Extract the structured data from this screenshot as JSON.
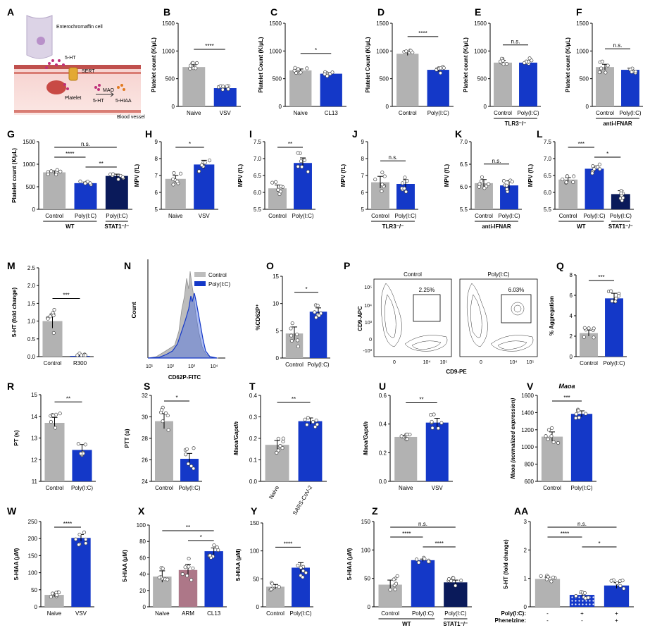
{
  "figure": {
    "schematic": {
      "panel_label": "A",
      "labels": {
        "enterochromaffin": "Enterochromaffin cell",
        "ht": "5-HT",
        "sert": "SERT",
        "platelet": "Platelet",
        "mao": "MAO",
        "ht2": "5-HT",
        "hiaa": "5-HIAA",
        "vessel": "Blood vessel"
      }
    },
    "flow": {
      "panel_label": "N",
      "xlabel": "CD62P-FITC",
      "ylabel": "Count",
      "ticks": [
        "10¹",
        "10²",
        "10³",
        "10⁴"
      ],
      "legend": [
        "Control",
        "Poly(I:C)"
      ]
    },
    "contour": {
      "panel_label": "P",
      "titles": [
        "Control",
        "Poly(I:C)"
      ],
      "gates": [
        "2.25%",
        "6.03%"
      ],
      "xlabel": "CD9-PE",
      "ylabel": "CD9-APC",
      "yticks": [
        "10⁵",
        "10⁴",
        "10³",
        "0",
        "-10³"
      ],
      "xticks": [
        "0",
        "10⁴",
        "10⁵"
      ]
    }
  },
  "chart_data": [
    {
      "id": "B",
      "type": "bar",
      "ylabel": "Platelet count (K/μL)",
      "ylim": [
        0,
        1500
      ],
      "yticks": [
        "0",
        "500",
        "1000",
        "1500"
      ],
      "categories": [
        "Naive",
        "VSV"
      ],
      "values": [
        710,
        330
      ],
      "errors": [
        40,
        25
      ],
      "colors": [
        "#b2b2b2",
        "#1438c8"
      ],
      "sig": [
        {
          "a": 0,
          "b": 1,
          "text": "****"
        }
      ],
      "groups": []
    },
    {
      "id": "C",
      "type": "bar",
      "ylabel": "Platelet Count (K/μL)",
      "ylim": [
        0,
        1500
      ],
      "yticks": [
        "0",
        "500",
        "1000",
        "1500"
      ],
      "categories": [
        "Naive",
        "CL13"
      ],
      "values": [
        650,
        590
      ],
      "errors": [
        25,
        20
      ],
      "colors": [
        "#b2b2b2",
        "#1438c8"
      ],
      "sig": [
        {
          "a": 0,
          "b": 1,
          "text": "*"
        }
      ],
      "groups": []
    },
    {
      "id": "D",
      "type": "bar",
      "ylabel": "Platelet Count (K/μL)",
      "ylim": [
        0,
        1500
      ],
      "yticks": [
        "0",
        "500",
        "1000",
        "1500"
      ],
      "categories": [
        "Control",
        "Poly(I:C)"
      ],
      "values": [
        950,
        660
      ],
      "errors": [
        30,
        30
      ],
      "colors": [
        "#b2b2b2",
        "#1438c8"
      ],
      "sig": [
        {
          "a": 0,
          "b": 1,
          "text": "****"
        }
      ],
      "groups": []
    },
    {
      "id": "E",
      "type": "bar",
      "ylabel": "Platelet count (K/μL)",
      "ylim": [
        0,
        1500
      ],
      "yticks": [
        "0",
        "500",
        "1000",
        "1500"
      ],
      "categories": [
        "Control",
        "Poly(I:C)"
      ],
      "values": [
        790,
        790
      ],
      "errors": [
        40,
        40
      ],
      "colors": [
        "#b2b2b2",
        "#1438c8"
      ],
      "sig": [
        {
          "a": 0,
          "b": 1,
          "text": "n.s."
        }
      ],
      "groups": [
        {
          "from": 0,
          "to": 1,
          "label": "TLR3⁻/⁻"
        }
      ]
    },
    {
      "id": "F",
      "type": "bar",
      "ylabel": "Platelet count (K/μL)",
      "ylim": [
        0,
        1500
      ],
      "yticks": [
        "0",
        "500",
        "1000",
        "1500"
      ],
      "categories": [
        "Control",
        "Poly(I:C)"
      ],
      "values": [
        710,
        660
      ],
      "errors": [
        50,
        30
      ],
      "colors": [
        "#b2b2b2",
        "#1438c8"
      ],
      "sig": [
        {
          "a": 0,
          "b": 1,
          "text": "n.s."
        }
      ],
      "groups": [
        {
          "from": 0,
          "to": 1,
          "label": "anti-IFNAR"
        }
      ]
    },
    {
      "id": "G",
      "type": "bar",
      "ylabel": "Platelet count (K/μL)",
      "ylim": [
        0,
        1500
      ],
      "yticks": [
        "0",
        "500",
        "1000",
        "1500"
      ],
      "categories": [
        "Control",
        "Poly(I:C)",
        "Poly(I:C)"
      ],
      "values": [
        820,
        580,
        740
      ],
      "errors": [
        30,
        25,
        40
      ],
      "colors": [
        "#b2b2b2",
        "#1438c8",
        "#0a1a5a"
      ],
      "sig": [
        {
          "a": 0,
          "b": 2,
          "text": "n.s."
        },
        {
          "a": 0,
          "b": 1,
          "text": "****"
        },
        {
          "a": 1,
          "b": 2,
          "text": "**"
        }
      ],
      "groups": [
        {
          "from": 0,
          "to": 1,
          "label": "WT"
        },
        {
          "from": 2,
          "to": 2,
          "label": "STAT1⁻/⁻"
        }
      ]
    },
    {
      "id": "H",
      "type": "bar",
      "ylabel": "MPV (fL)",
      "ylim": [
        5,
        9
      ],
      "yticks": [
        "5",
        "6",
        "7",
        "8",
        "9"
      ],
      "categories": [
        "Naive",
        "VSV"
      ],
      "values": [
        6.8,
        7.65
      ],
      "errors": [
        0.2,
        0.25
      ],
      "colors": [
        "#b2b2b2",
        "#1438c8"
      ],
      "sig": [
        {
          "a": 0,
          "b": 1,
          "text": "*"
        }
      ],
      "groups": []
    },
    {
      "id": "I",
      "type": "bar",
      "ylabel": "MPV (fL)",
      "ylim": [
        5.5,
        7.5
      ],
      "yticks": [
        "5.5",
        "6.0",
        "6.5",
        "7.0",
        "7.5"
      ],
      "categories": [
        "Control",
        "Poly(I:C)"
      ],
      "values": [
        6.12,
        6.87
      ],
      "errors": [
        0.1,
        0.15
      ],
      "colors": [
        "#b2b2b2",
        "#1438c8"
      ],
      "sig": [
        {
          "a": 0,
          "b": 1,
          "text": "**"
        }
      ],
      "groups": []
    },
    {
      "id": "J",
      "type": "bar",
      "ylabel": "MPV (fL)",
      "ylim": [
        5,
        9
      ],
      "yticks": [
        "5",
        "6",
        "7",
        "8",
        "9"
      ],
      "categories": [
        "Control",
        "Poly(I:C)"
      ],
      "values": [
        6.6,
        6.5
      ],
      "errors": [
        0.35,
        0.25
      ],
      "colors": [
        "#b2b2b2",
        "#1438c8"
      ],
      "sig": [
        {
          "a": 0,
          "b": 1,
          "text": "n.s."
        }
      ],
      "groups": [
        {
          "from": 0,
          "to": 1,
          "label": "TLR3⁻/⁻"
        }
      ]
    },
    {
      "id": "K",
      "type": "bar",
      "ylabel": "MPV (fL)",
      "ylim": [
        5.5,
        7.0
      ],
      "yticks": [
        "5.5",
        "6.0",
        "6.5",
        "7.0"
      ],
      "categories": [
        "Control",
        "Poly(I:C)"
      ],
      "values": [
        6.08,
        6.03
      ],
      "errors": [
        0.08,
        0.1
      ],
      "colors": [
        "#b2b2b2",
        "#1438c8"
      ],
      "sig": [
        {
          "a": 0,
          "b": 1,
          "text": "n.s."
        }
      ],
      "groups": [
        {
          "from": 0,
          "to": 1,
          "label": "anti-IFNAR"
        }
      ]
    },
    {
      "id": "L",
      "type": "bar",
      "ylabel": "MPV (fL)",
      "ylim": [
        5.5,
        7.5
      ],
      "yticks": [
        "5.5",
        "6.0",
        "6.5",
        "7.0",
        "7.5"
      ],
      "categories": [
        "Control",
        "Poly(I:C)",
        "Poly(I:C)"
      ],
      "values": [
        6.38,
        6.7,
        5.95
      ],
      "errors": [
        0.06,
        0.08,
        0.1
      ],
      "colors": [
        "#b2b2b2",
        "#1438c8",
        "#0a1a5a"
      ],
      "sig": [
        {
          "a": 0,
          "b": 1,
          "text": "***"
        },
        {
          "a": 1,
          "b": 2,
          "text": "*"
        }
      ],
      "groups": [
        {
          "from": 0,
          "to": 1,
          "label": "WT"
        },
        {
          "from": 2,
          "to": 2,
          "label": "STAT1⁻/⁻"
        }
      ]
    },
    {
      "id": "M",
      "type": "bar",
      "ylabel": "5-HT (fold change)",
      "ylim": [
        0,
        2.5
      ],
      "yticks": [
        "0.0",
        "0.5",
        "1.0",
        "1.5",
        "2.0",
        "2.5"
      ],
      "categories": [
        "Control",
        "R300"
      ],
      "values": [
        1.0,
        0.02
      ],
      "errors": [
        0.2,
        0.01
      ],
      "colors": [
        "#b2b2b2",
        "#1438c8"
      ],
      "sig": [
        {
          "a": 0,
          "b": 1,
          "text": "***"
        }
      ],
      "groups": []
    },
    {
      "id": "O",
      "type": "bar",
      "ylabel": "%CD62P⁺",
      "ylim": [
        0,
        15
      ],
      "yticks": [
        "0",
        "5",
        "10",
        "15"
      ],
      "categories": [
        "Control",
        "Poly(I:C)"
      ],
      "values": [
        4.5,
        8.5
      ],
      "errors": [
        1.2,
        0.7
      ],
      "colors": [
        "#b2b2b2",
        "#1438c8"
      ],
      "sig": [
        {
          "a": 0,
          "b": 1,
          "text": "*"
        }
      ],
      "groups": []
    },
    {
      "id": "Q",
      "type": "bar",
      "ylabel": "% Aggregation",
      "ylim": [
        0,
        8
      ],
      "yticks": [
        "0",
        "2",
        "4",
        "6",
        "8"
      ],
      "categories": [
        "Control",
        "Poly(I:C)"
      ],
      "values": [
        2.3,
        5.7
      ],
      "errors": [
        0.3,
        0.5
      ],
      "colors": [
        "#b2b2b2",
        "#1438c8"
      ],
      "sig": [
        {
          "a": 0,
          "b": 1,
          "text": "***"
        }
      ],
      "groups": []
    },
    {
      "id": "R",
      "type": "bar",
      "ylabel": "PT (s)",
      "ylim": [
        11,
        15
      ],
      "yticks": [
        "11",
        "12",
        "13",
        "14",
        "15"
      ],
      "categories": [
        "Control",
        "Poly(I:C)"
      ],
      "values": [
        13.7,
        12.45
      ],
      "errors": [
        0.25,
        0.25
      ],
      "colors": [
        "#b2b2b2",
        "#1438c8"
      ],
      "sig": [
        {
          "a": 0,
          "b": 1,
          "text": "**"
        }
      ],
      "groups": []
    },
    {
      "id": "S",
      "type": "bar",
      "ylabel": "PTT (s)",
      "ylim": [
        24,
        32
      ],
      "yticks": [
        "24",
        "26",
        "28",
        "30",
        "32"
      ],
      "categories": [
        "Control",
        "Poly(I:C)"
      ],
      "values": [
        29.6,
        26.1
      ],
      "errors": [
        0.7,
        0.5
      ],
      "colors": [
        "#b2b2b2",
        "#1438c8"
      ],
      "sig": [
        {
          "a": 0,
          "b": 1,
          "text": "*"
        }
      ],
      "groups": []
    },
    {
      "id": "T",
      "type": "bar",
      "ylabel": "Maoa/Gapdh",
      "ylim": [
        0,
        0.4
      ],
      "yticks": [
        "0.0",
        "0.1",
        "0.2",
        "0.3",
        "0.4"
      ],
      "categories": [
        "Naive",
        "SARS-CoV-2"
      ],
      "values": [
        0.17,
        0.28
      ],
      "errors": [
        0.02,
        0.015
      ],
      "colors": [
        "#b2b2b2",
        "#1438c8"
      ],
      "sig": [
        {
          "a": 0,
          "b": 1,
          "text": "**"
        }
      ],
      "groups": [],
      "rotate": true
    },
    {
      "id": "U",
      "type": "bar",
      "ylabel": "Maoa/Gapdh",
      "ylim": [
        0,
        0.6
      ],
      "yticks": [
        "0.0",
        "0.2",
        "0.4",
        "0.6"
      ],
      "categories": [
        "Naive",
        "VSV"
      ],
      "values": [
        0.31,
        0.41
      ],
      "errors": [
        0.012,
        0.03
      ],
      "colors": [
        "#b2b2b2",
        "#1438c8"
      ],
      "sig": [
        {
          "a": 0,
          "b": 1,
          "text": "**"
        }
      ],
      "groups": []
    },
    {
      "id": "V",
      "type": "bar",
      "title": "Maoa",
      "ylabel": "Maoa (normalized expression)",
      "ylim": [
        600,
        1600
      ],
      "yticks": [
        "600",
        "800",
        "1000",
        "1200",
        "1400",
        "1600"
      ],
      "categories": [
        "Control",
        "Poly(I:C)"
      ],
      "values": [
        1120,
        1385
      ],
      "errors": [
        55,
        35
      ],
      "colors": [
        "#b2b2b2",
        "#1438c8"
      ],
      "sig": [
        {
          "a": 0,
          "b": 1,
          "text": "***"
        }
      ],
      "groups": []
    },
    {
      "id": "W",
      "type": "bar",
      "ylabel": "5-HIAA (μM)",
      "ylim": [
        0,
        250
      ],
      "yticks": [
        "0",
        "50",
        "100",
        "150",
        "200",
        "250"
      ],
      "categories": [
        "Naive",
        "VSV"
      ],
      "values": [
        35,
        202
      ],
      "errors": [
        5,
        10
      ],
      "colors": [
        "#b2b2b2",
        "#1438c8"
      ],
      "sig": [
        {
          "a": 0,
          "b": 1,
          "text": "****"
        }
      ],
      "groups": []
    },
    {
      "id": "X",
      "type": "bar",
      "ylabel": "5-HIAA (μM)",
      "ylim": [
        0,
        100
      ],
      "yticks": [
        "0",
        "20",
        "40",
        "60",
        "80",
        "100"
      ],
      "categories": [
        "Naive",
        "ARM",
        "CL13"
      ],
      "values": [
        37,
        45,
        68
      ],
      "errors": [
        7,
        7,
        4
      ],
      "colors": [
        "#b2b2b2",
        "#ad7788",
        "#1438c8"
      ],
      "sig": [
        {
          "a": 0,
          "b": 2,
          "text": "**"
        },
        {
          "a": 1,
          "b": 2,
          "text": "*"
        }
      ],
      "groups": []
    },
    {
      "id": "Y",
      "type": "bar",
      "ylabel": "5-HIAA (μM)",
      "ylim": [
        0,
        150
      ],
      "yticks": [
        "0",
        "50",
        "100",
        "150"
      ],
      "categories": [
        "Control",
        "Poly(I:C)"
      ],
      "values": [
        36,
        70
      ],
      "errors": [
        4,
        9
      ],
      "colors": [
        "#b2b2b2",
        "#1438c8"
      ],
      "sig": [
        {
          "a": 0,
          "b": 1,
          "text": "****"
        }
      ],
      "groups": []
    },
    {
      "id": "Z",
      "type": "bar",
      "ylabel": "5-HIAA (μM)",
      "ylim": [
        0,
        150
      ],
      "yticks": [
        "0",
        "50",
        "100",
        "150"
      ],
      "categories": [
        "Control",
        "Poly(I:C)",
        "Poly(I:C)"
      ],
      "values": [
        39,
        82,
        43
      ],
      "errors": [
        8,
        2,
        4
      ],
      "colors": [
        "#b2b2b2",
        "#1438c8",
        "#0a1a5a"
      ],
      "sig": [
        {
          "a": 0,
          "b": 2,
          "text": "n.s."
        },
        {
          "a": 0,
          "b": 1,
          "text": "****"
        },
        {
          "a": 1,
          "b": 2,
          "text": "****"
        }
      ],
      "groups": [
        {
          "from": 0,
          "to": 1,
          "label": "WT"
        },
        {
          "from": 2,
          "to": 2,
          "label": "STAT1⁻/⁻"
        }
      ]
    },
    {
      "id": "AA",
      "type": "bar",
      "ylabel": "5-HT (fold change)",
      "ylim": [
        0,
        3
      ],
      "yticks": [
        "0",
        "1",
        "2",
        "3"
      ],
      "categories": [
        "-",
        "+",
        "+"
      ],
      "values": [
        0.98,
        0.42,
        0.75
      ],
      "errors": [
        0.06,
        0.06,
        0.1
      ],
      "colors": [
        "#b2b2b2",
        "#1438c8",
        "#1438c8"
      ],
      "patterns": [
        false,
        true,
        false
      ],
      "sig": [
        {
          "a": 0,
          "b": 2,
          "text": "n.s."
        },
        {
          "a": 0,
          "b": 1,
          "text": "****"
        },
        {
          "a": 1,
          "b": 2,
          "text": "*"
        }
      ],
      "groups": [],
      "row_labels": [
        "Poly(I:C):",
        "Phenelzine:"
      ],
      "row2": [
        "-",
        "-",
        "+"
      ]
    }
  ]
}
